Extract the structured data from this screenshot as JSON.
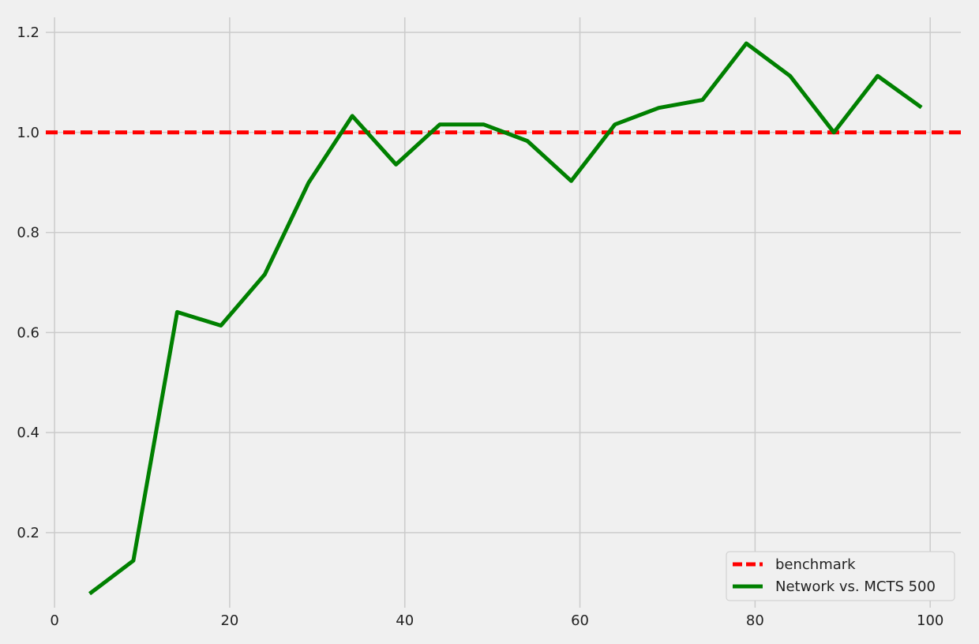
{
  "chart_data": {
    "type": "line",
    "title": "",
    "xlabel": "",
    "ylabel": "",
    "xlim": [
      -1,
      103.5
    ],
    "ylim": [
      0.05,
      1.23
    ],
    "x_ticks": [
      0,
      20,
      40,
      60,
      80,
      100
    ],
    "y_ticks": [
      0.2,
      0.4,
      0.6,
      0.8,
      1.0,
      1.2
    ],
    "x_tick_labels": [
      "0",
      "20",
      "40",
      "60",
      "80",
      "100"
    ],
    "y_tick_labels": [
      "0.2",
      "0.4",
      "0.6",
      "0.8",
      "1.0",
      "1.2"
    ],
    "grid": true,
    "legend_position": "bottom-right",
    "series": [
      {
        "name": "benchmark",
        "style": "dashed",
        "color": "#ff0000",
        "x": [
          -1,
          103.5
        ],
        "values": [
          1.0,
          1.0
        ]
      },
      {
        "name": "Network vs. MCTS 500",
        "style": "solid",
        "color": "#008000",
        "x": [
          4,
          9,
          14,
          19,
          24,
          29,
          34,
          39,
          44,
          49,
          54,
          59,
          64,
          69,
          74,
          79,
          84,
          89,
          94,
          99
        ],
        "values": [
          0.078,
          0.144,
          0.641,
          0.614,
          0.716,
          0.899,
          1.033,
          0.936,
          1.016,
          1.016,
          0.983,
          0.903,
          1.016,
          1.049,
          1.065,
          1.178,
          1.113,
          1.0,
          1.113,
          1.05
        ]
      }
    ]
  }
}
